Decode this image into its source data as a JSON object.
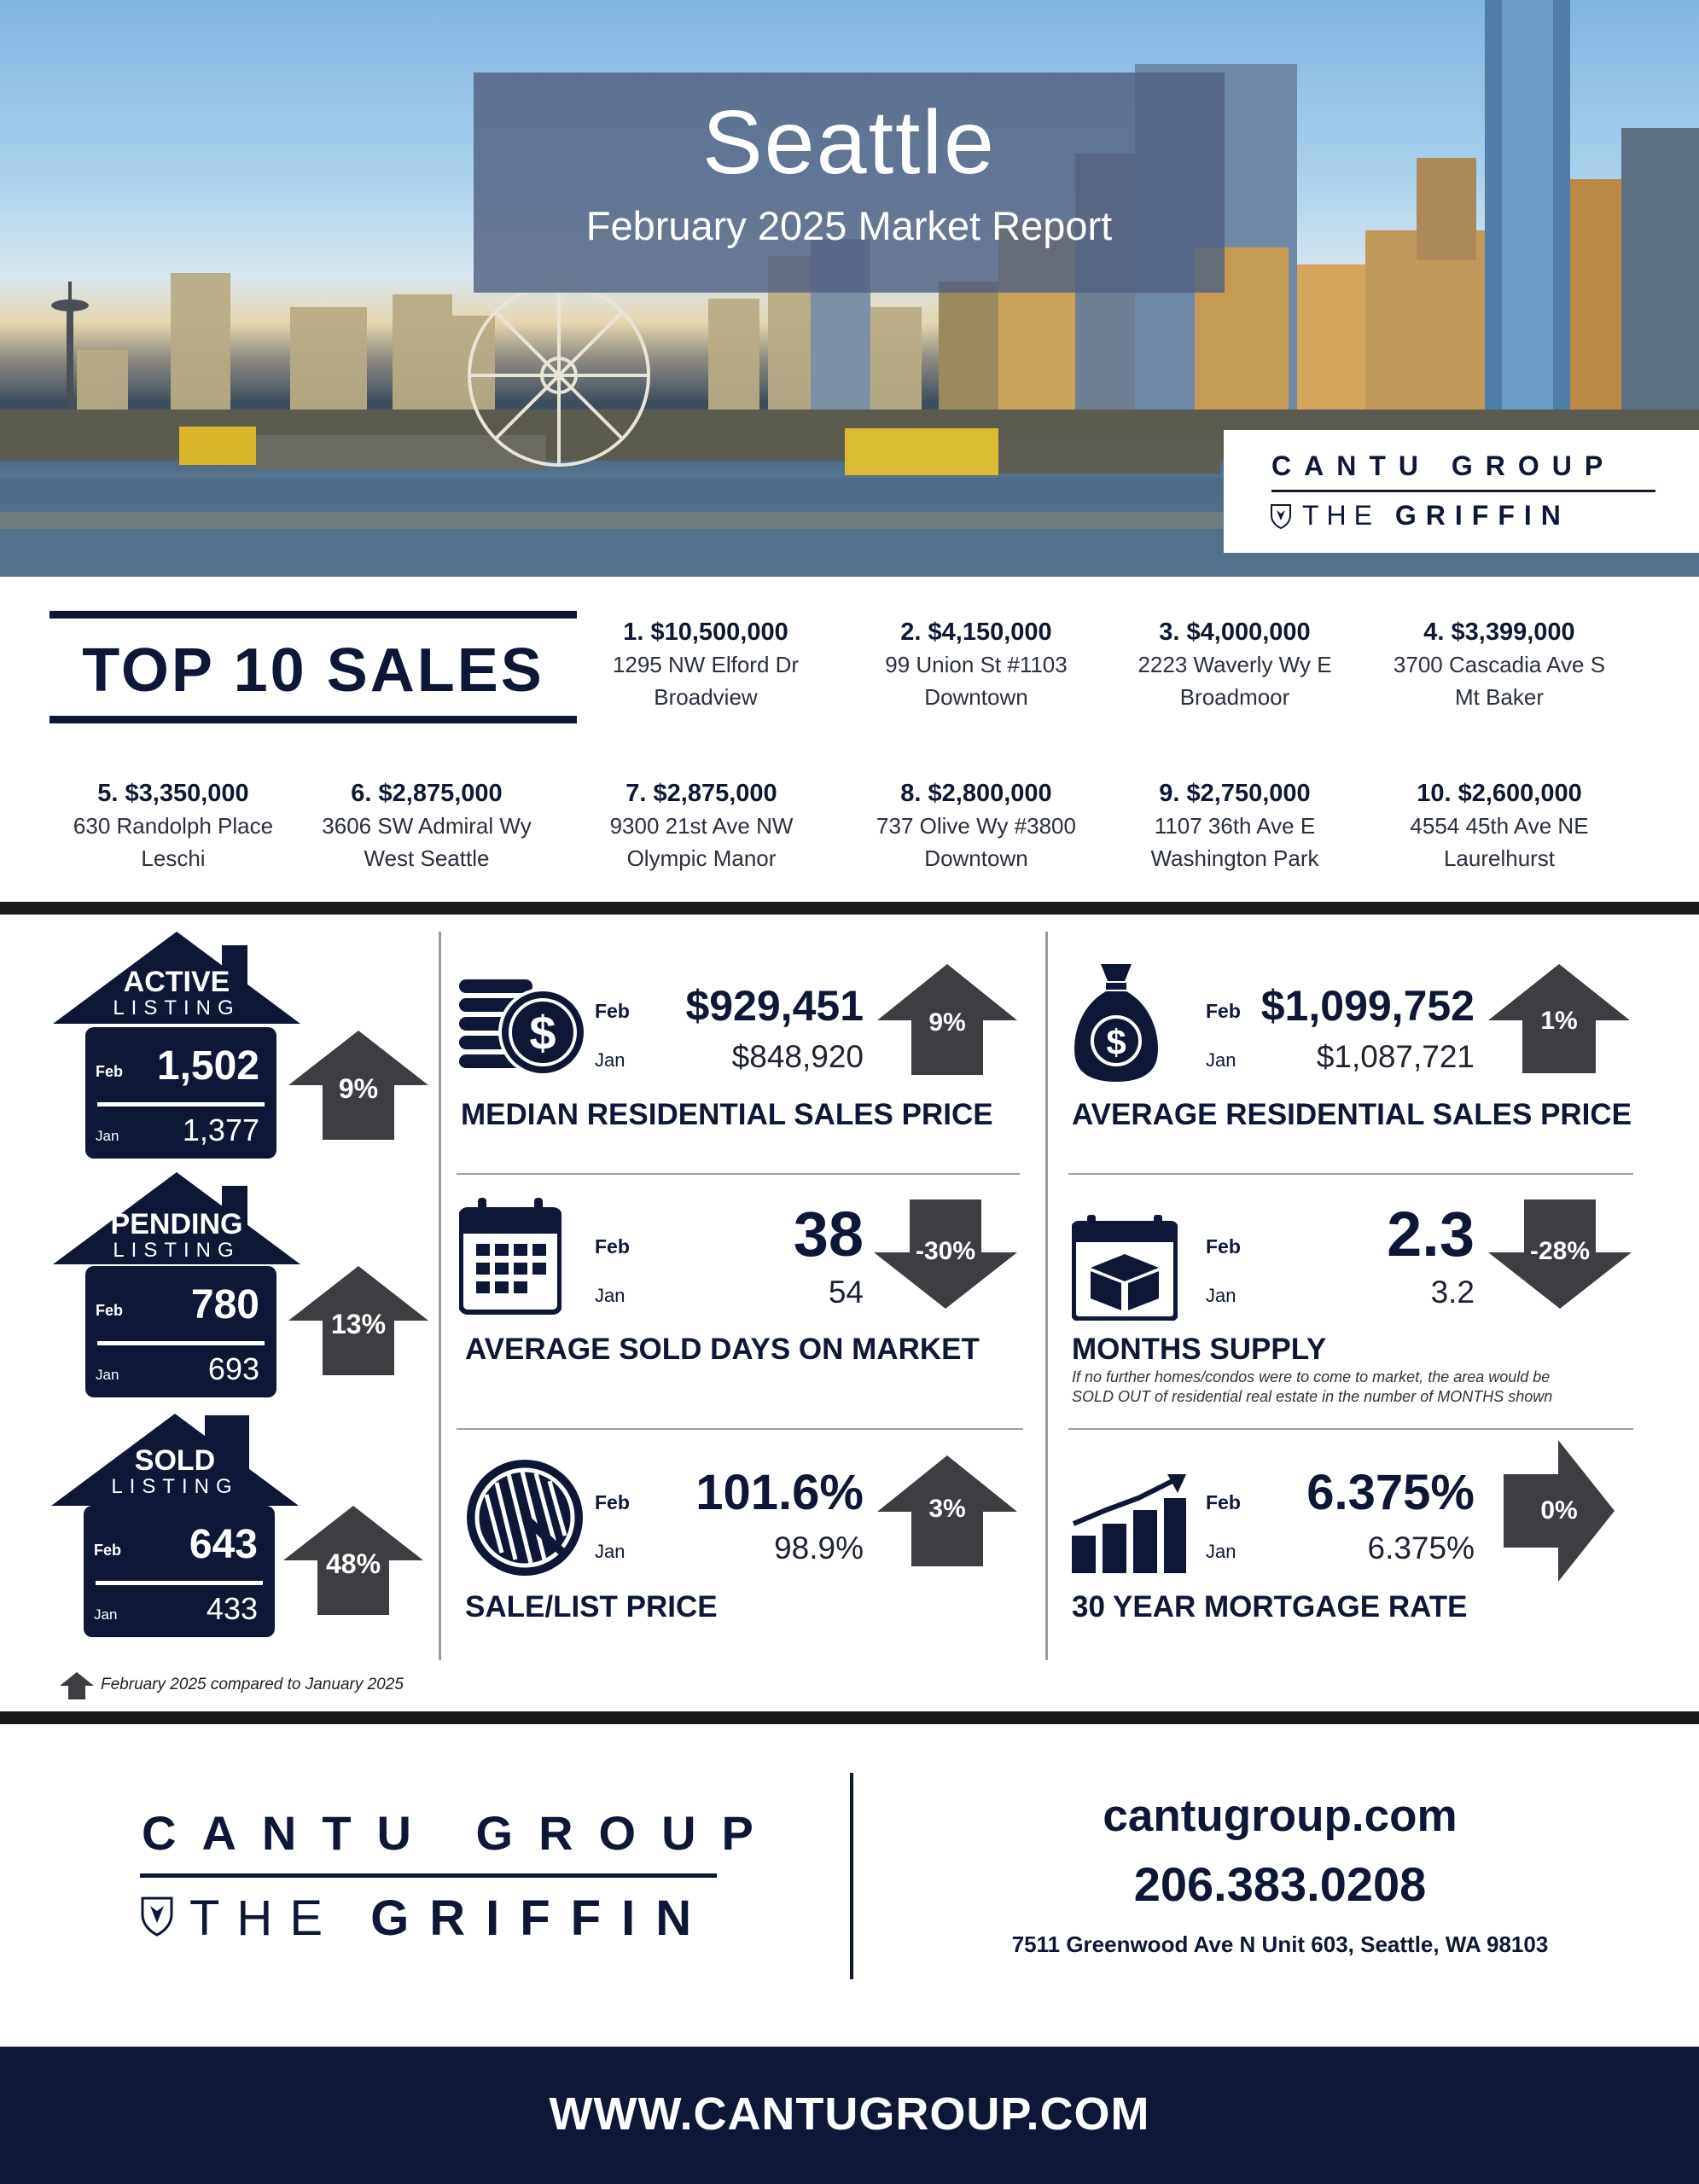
{
  "hero": {
    "city": "Seattle",
    "subtitle": "February 2025 Market Report",
    "logo_line1": "CANTU GROUP",
    "logo_line2_light": "THE",
    "logo_line2_bold": "GRIFFIN"
  },
  "top10": {
    "title": "TOP 10 SALES",
    "sales": [
      {
        "price": "1. $10,500,000",
        "address": "1295 NW Elford Dr",
        "area": "Broadview"
      },
      {
        "price": "2. $4,150,000",
        "address": "99 Union St #1103",
        "area": "Downtown"
      },
      {
        "price": "3. $4,000,000",
        "address": "2223 Waverly Wy E",
        "area": "Broadmoor"
      },
      {
        "price": "4. $3,399,000",
        "address": "3700 Cascadia Ave S",
        "area": "Mt Baker"
      },
      {
        "price": "5. $3,350,000",
        "address": "630 Randolph Place",
        "area": "Leschi"
      },
      {
        "price": "6. $2,875,000",
        "address": "3606 SW Admiral Wy",
        "area": "West Seattle"
      },
      {
        "price": "7. $2,875,000",
        "address": "9300 21st Ave NW",
        "area": "Olympic Manor"
      },
      {
        "price": "8. $2,800,000",
        "address": "737 Olive Wy #3800",
        "area": "Downtown"
      },
      {
        "price": "9. $2,750,000",
        "address": "1107 36th Ave E",
        "area": "Washington Park"
      },
      {
        "price": "10. $2,600,000",
        "address": "4554 45th Ave NE",
        "area": "Laurelhurst"
      }
    ]
  },
  "listings": [
    {
      "word1": "ACTIVE",
      "word2": "LISTING",
      "feb_label": "Feb",
      "feb": "1,502",
      "jan_label": "Jan",
      "jan": "1,377",
      "change": "9%"
    },
    {
      "word1": "PENDING",
      "word2": "LISTING",
      "feb_label": "Feb",
      "feb": "780",
      "jan_label": "Jan",
      "jan": "693",
      "change": "13%"
    },
    {
      "word1": "SOLD",
      "word2": "LISTING",
      "feb_label": "Feb",
      "feb": "643",
      "jan_label": "Jan",
      "jan": "433",
      "change": "48%"
    }
  ],
  "metrics": {
    "median": {
      "feb_label": "Feb",
      "feb": "$929,451",
      "jan_label": "Jan",
      "jan": "$848,920",
      "change": "9%",
      "title": "MEDIAN RESIDENTIAL SALES PRICE"
    },
    "average": {
      "feb_label": "Feb",
      "feb": "$1,099,752",
      "jan_label": "Jan",
      "jan": "$1,087,721",
      "change": "1%",
      "title": "AVERAGE RESIDENTIAL SALES PRICE"
    },
    "dom": {
      "feb_label": "Feb",
      "feb": "38",
      "jan_label": "Jan",
      "jan": "54",
      "change": "-30%",
      "title": "AVERAGE SOLD DAYS ON MARKET"
    },
    "supply": {
      "feb_label": "Feb",
      "feb": "2.3",
      "jan_label": "Jan",
      "jan": "3.2",
      "change": "-28%",
      "title": "MONTHS SUPPLY",
      "note_line1": "If no further homes/condos were to come to market, the area would be",
      "note_line2": "SOLD OUT of residential real estate in the number of MONTHS shown"
    },
    "salelist": {
      "feb_label": "Feb",
      "feb": "101.6%",
      "jan_label": "Jan",
      "jan": "98.9%",
      "change": "3%",
      "title": "SALE/LIST PRICE"
    },
    "mortgage": {
      "feb_label": "Feb",
      "feb": "6.375%",
      "jan_label": "Jan",
      "jan": "6.375%",
      "change": "0%",
      "title": "30 YEAR MORTGAGE RATE"
    }
  },
  "legend": "February 2025 compared to January 2025",
  "footer": {
    "logo_line1": "CANTU GROUP",
    "logo_line2_light": "THE",
    "logo_line2_bold": "GRIFFIN",
    "website_small": "cantugroup.com",
    "phone": "206.383.0208",
    "address": "7511 Greenwood Ave N Unit 603, Seattle, WA 98103",
    "website_banner": "WWW.CANTUGROUP.COM"
  },
  "colors": {
    "navy": "#0e1836",
    "arrow_gray": "#3d3e42",
    "rule_dark": "#1d1a1e"
  }
}
